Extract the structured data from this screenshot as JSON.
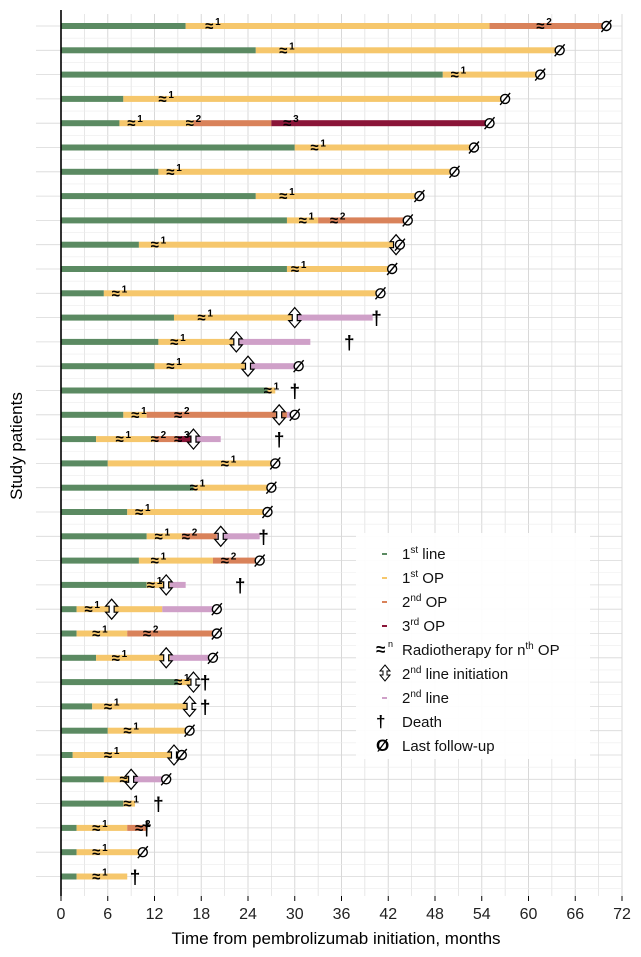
{
  "chart_data": {
    "type": "bar",
    "orientation": "horizontal",
    "stacked": true,
    "xlabel": "Time from pembrolizumab initiation, months",
    "ylabel": "Study patients",
    "xlim": [
      0,
      72
    ],
    "xticks": [
      "0",
      "6",
      "12",
      "18",
      "24",
      "30",
      "36",
      "42",
      "48",
      "54",
      "60",
      "66",
      "72"
    ],
    "grid": true,
    "legend_position": "right, lower middle",
    "colors": {
      "first_line": "#5b8a62",
      "first_op": "#f6c76c",
      "second_op": "#d9825a",
      "third_op": "#8a1538",
      "second_line": "#cfa0c8",
      "axis": "#000000",
      "grid": "#d8d8d8"
    },
    "legend": [
      {
        "key": "first_line",
        "label": "1",
        "sup": "st",
        "suffix": " line"
      },
      {
        "key": "first_op",
        "label": "1",
        "sup": "st",
        "suffix": " OP"
      },
      {
        "key": "second_op",
        "label": "2",
        "sup": "nd",
        "suffix": " OP"
      },
      {
        "key": "third_op",
        "label": "3",
        "sup": "rd",
        "suffix": " OP"
      },
      {
        "key": "radiotherapy",
        "label": "Radiotherapy for n",
        "sup": "th",
        "suffix": " OP",
        "icon": "≈",
        "icon_sup": "n"
      },
      {
        "key": "second_line_initiation",
        "label": "2",
        "sup": "nd",
        "suffix": " line initiation",
        "icon": "⇳"
      },
      {
        "key": "second_line",
        "label": "2",
        "sup": "nd",
        "suffix": " line"
      },
      {
        "key": "death",
        "label": "Death",
        "icon": "†"
      },
      {
        "key": "last_follow_up",
        "label": "Last follow-up",
        "icon": "Ø"
      }
    ],
    "series_order": [
      "first_line",
      "first_op",
      "second_op",
      "third_op",
      "second_line"
    ],
    "patients": [
      {
        "segments": [
          [
            0,
            16,
            "first_line"
          ],
          [
            16,
            55,
            "first_op"
          ],
          [
            55,
            70,
            "second_op"
          ]
        ],
        "rt": [
          [
            18.5,
            1
          ],
          [
            61,
            2
          ]
        ],
        "end": "last_follow_up",
        "end_x": 70
      },
      {
        "segments": [
          [
            0,
            25,
            "first_line"
          ],
          [
            25,
            64,
            "first_op"
          ]
        ],
        "rt": [
          [
            28,
            1
          ]
        ],
        "end": "last_follow_up",
        "end_x": 64
      },
      {
        "segments": [
          [
            0,
            49,
            "first_line"
          ],
          [
            49,
            61.5,
            "first_op"
          ]
        ],
        "rt": [
          [
            50,
            1
          ]
        ],
        "end": "last_follow_up",
        "end_x": 61.5
      },
      {
        "segments": [
          [
            0,
            8,
            "first_line"
          ],
          [
            8,
            57,
            "first_op"
          ]
        ],
        "rt": [
          [
            12.5,
            1
          ]
        ],
        "end": "last_follow_up",
        "end_x": 57
      },
      {
        "segments": [
          [
            0,
            7.5,
            "first_line"
          ],
          [
            7.5,
            17,
            "first_op"
          ],
          [
            17,
            27,
            "second_op"
          ],
          [
            27,
            55,
            "third_op"
          ]
        ],
        "rt": [
          [
            8.5,
            1
          ],
          [
            16,
            2
          ],
          [
            28.5,
            3
          ]
        ],
        "end": "last_follow_up",
        "end_x": 55
      },
      {
        "segments": [
          [
            0,
            30,
            "first_line"
          ],
          [
            30,
            53,
            "first_op"
          ]
        ],
        "rt": [
          [
            32,
            1
          ]
        ],
        "end": "last_follow_up",
        "end_x": 53
      },
      {
        "segments": [
          [
            0,
            12.5,
            "first_line"
          ],
          [
            12.5,
            50.5,
            "first_op"
          ]
        ],
        "rt": [
          [
            13.5,
            1
          ]
        ],
        "end": "last_follow_up",
        "end_x": 50.5
      },
      {
        "segments": [
          [
            0,
            25,
            "first_line"
          ],
          [
            25,
            46,
            "first_op"
          ]
        ],
        "rt": [
          [
            28,
            1
          ]
        ],
        "end": "last_follow_up",
        "end_x": 46
      },
      {
        "segments": [
          [
            0,
            29,
            "first_line"
          ],
          [
            29,
            33,
            "first_op"
          ],
          [
            33,
            44.5,
            "second_op"
          ]
        ],
        "rt": [
          [
            30.5,
            1
          ],
          [
            34.5,
            2
          ]
        ],
        "end": "last_follow_up",
        "end_x": 44.5
      },
      {
        "segments": [
          [
            0,
            10,
            "first_line"
          ],
          [
            10,
            43.5,
            "first_op"
          ]
        ],
        "rt": [
          [
            11.5,
            1
          ]
        ],
        "initiation_x": 43,
        "end": "last_follow_up",
        "end_x": 43.5
      },
      {
        "segments": [
          [
            0,
            29,
            "first_line"
          ],
          [
            29,
            42.5,
            "first_op"
          ]
        ],
        "rt": [
          [
            29.5,
            1
          ]
        ],
        "end": "last_follow_up",
        "end_x": 42.5
      },
      {
        "segments": [
          [
            0,
            5.5,
            "first_line"
          ],
          [
            5.5,
            41,
            "first_op"
          ]
        ],
        "rt": [
          [
            6.5,
            1
          ]
        ],
        "end": "last_follow_up",
        "end_x": 41
      },
      {
        "segments": [
          [
            0,
            14.5,
            "first_line"
          ],
          [
            14.5,
            30,
            "first_op"
          ],
          [
            30,
            40,
            "second_line"
          ]
        ],
        "rt": [
          [
            17.5,
            1
          ]
        ],
        "initiation_x": 30,
        "end": "death",
        "end_x": 40.5
      },
      {
        "segments": [
          [
            0,
            12.5,
            "first_line"
          ],
          [
            12.5,
            22.5,
            "first_op"
          ],
          [
            22.5,
            32,
            "second_line"
          ]
        ],
        "rt": [
          [
            14,
            1
          ]
        ],
        "initiation_x": 22.5,
        "end": "death",
        "end_x": 37
      },
      {
        "segments": [
          [
            0,
            12,
            "first_line"
          ],
          [
            12,
            24,
            "first_op"
          ],
          [
            24,
            30.5,
            "second_line"
          ]
        ],
        "rt": [
          [
            13.5,
            1
          ]
        ],
        "initiation_x": 24,
        "end": "last_follow_up",
        "end_x": 30.5
      },
      {
        "segments": [
          [
            0,
            26.5,
            "first_line"
          ],
          [
            26.5,
            27.5,
            "first_op"
          ]
        ],
        "rt": [
          [
            26,
            1
          ]
        ],
        "end": "death",
        "end_x": 30
      },
      {
        "segments": [
          [
            0,
            8,
            "first_line"
          ],
          [
            8,
            11,
            "first_op"
          ],
          [
            11,
            29,
            "second_op"
          ],
          [
            29,
            30,
            "second_line"
          ]
        ],
        "rt": [
          [
            9,
            1
          ],
          [
            14.5,
            2
          ]
        ],
        "initiation_x": 28,
        "end": "last_follow_up",
        "end_x": 30
      },
      {
        "segments": [
          [
            0,
            4.5,
            "first_line"
          ],
          [
            4.5,
            12,
            "first_op"
          ],
          [
            12,
            15,
            "second_op"
          ],
          [
            15,
            17,
            "third_op"
          ],
          [
            17,
            20.5,
            "second_line"
          ]
        ],
        "rt": [
          [
            7,
            1
          ],
          [
            11.5,
            2
          ],
          [
            14.5,
            3
          ]
        ],
        "initiation_x": 17,
        "end": "death",
        "end_x": 28
      },
      {
        "segments": [
          [
            0,
            6,
            "first_line"
          ],
          [
            6,
            27.5,
            "first_op"
          ]
        ],
        "rt": [
          [
            20.5,
            1
          ]
        ],
        "end": "last_follow_up",
        "end_x": 27.5
      },
      {
        "segments": [
          [
            0,
            17,
            "first_line"
          ],
          [
            17,
            27,
            "first_op"
          ]
        ],
        "rt": [
          [
            16.5,
            1
          ]
        ],
        "end": "last_follow_up",
        "end_x": 27
      },
      {
        "segments": [
          [
            0,
            8.5,
            "first_line"
          ],
          [
            8.5,
            26.5,
            "first_op"
          ]
        ],
        "rt": [
          [
            9.5,
            1
          ]
        ],
        "end": "last_follow_up",
        "end_x": 26.5
      },
      {
        "segments": [
          [
            0,
            11,
            "first_line"
          ],
          [
            11,
            15.5,
            "first_op"
          ],
          [
            15.5,
            20,
            "second_op"
          ],
          [
            20,
            25.5,
            "second_line"
          ]
        ],
        "rt": [
          [
            12,
            1
          ],
          [
            15.5,
            2
          ]
        ],
        "initiation_x": 20.5,
        "end": "death",
        "end_x": 26
      },
      {
        "segments": [
          [
            0,
            10,
            "first_line"
          ],
          [
            10,
            19.5,
            "first_op"
          ],
          [
            19.5,
            25.5,
            "second_op"
          ]
        ],
        "rt": [
          [
            11.5,
            1
          ],
          [
            20.5,
            2
          ]
        ],
        "end": "last_follow_up",
        "end_x": 25.5
      },
      {
        "segments": [
          [
            0,
            11,
            "first_line"
          ],
          [
            11,
            14,
            "first_op"
          ],
          [
            14,
            16,
            "second_line"
          ]
        ],
        "rt": [
          [
            11,
            1
          ]
        ],
        "initiation_x": 13.5,
        "end": "death",
        "end_x": 23
      },
      {
        "segments": [
          [
            0,
            2,
            "first_line"
          ],
          [
            2,
            13,
            "first_op"
          ],
          [
            13,
            20,
            "second_line"
          ]
        ],
        "rt": [
          [
            3,
            1
          ]
        ],
        "initiation_x": 6.5,
        "end": "last_follow_up",
        "end_x": 20
      },
      {
        "segments": [
          [
            0,
            2,
            "first_line"
          ],
          [
            2,
            8.5,
            "first_op"
          ],
          [
            8.5,
            20,
            "second_op"
          ]
        ],
        "rt": [
          [
            4,
            1
          ],
          [
            10.5,
            2
          ]
        ],
        "end": "last_follow_up",
        "end_x": 20
      },
      {
        "segments": [
          [
            0,
            4.5,
            "first_line"
          ],
          [
            4.5,
            14,
            "first_op"
          ],
          [
            14,
            19.5,
            "second_line"
          ]
        ],
        "rt": [
          [
            6.5,
            1
          ]
        ],
        "initiation_x": 13.5,
        "end": "last_follow_up",
        "end_x": 19.5
      },
      {
        "segments": [
          [
            0,
            15,
            "first_line"
          ],
          [
            15,
            17,
            "first_op"
          ]
        ],
        "rt": [
          [
            14.5,
            1
          ]
        ],
        "initiation_x": 17,
        "end": "death",
        "end_x": 18.5
      },
      {
        "segments": [
          [
            0,
            4,
            "first_line"
          ],
          [
            4,
            16.5,
            "first_op"
          ]
        ],
        "rt": [
          [
            5.5,
            1
          ]
        ],
        "initiation_x": 16.5,
        "end": "death",
        "end_x": 18.5
      },
      {
        "segments": [
          [
            0,
            6,
            "first_line"
          ],
          [
            6,
            16.5,
            "first_op"
          ]
        ],
        "rt": [
          [
            8,
            1
          ]
        ],
        "end": "last_follow_up",
        "end_x": 16.5
      },
      {
        "segments": [
          [
            0,
            1.5,
            "first_line"
          ],
          [
            1.5,
            14.5,
            "first_op"
          ]
        ],
        "rt": [
          [
            5.5,
            1
          ]
        ],
        "initiation_x": 14.5,
        "end": "last_follow_up",
        "end_x": 15.5
      },
      {
        "segments": [
          [
            0,
            5.5,
            "first_line"
          ],
          [
            5.5,
            9,
            "first_op"
          ],
          [
            9,
            13,
            "second_line"
          ]
        ],
        "rt": [
          [
            7.5,
            1
          ]
        ],
        "initiation_x": 9,
        "end": "last_follow_up",
        "end_x": 13.5
      },
      {
        "segments": [
          [
            0,
            8,
            "first_line"
          ],
          [
            8,
            9.5,
            "first_op"
          ]
        ],
        "rt": [
          [
            8,
            1
          ]
        ],
        "end": "death",
        "end_x": 12.5
      },
      {
        "segments": [
          [
            0,
            2,
            "first_line"
          ],
          [
            2,
            8.5,
            "first_op"
          ],
          [
            8.5,
            11,
            "second_op"
          ]
        ],
        "rt": [
          [
            4,
            1
          ],
          [
            9.5,
            2
          ]
        ],
        "end": "death",
        "end_x": 11
      },
      {
        "segments": [
          [
            0,
            2,
            "first_line"
          ],
          [
            2,
            10.5,
            "first_op"
          ]
        ],
        "rt": [
          [
            4,
            1
          ]
        ],
        "end": "last_follow_up",
        "end_x": 10.5
      },
      {
        "segments": [
          [
            0,
            2,
            "first_line"
          ],
          [
            2,
            8.5,
            "first_op"
          ]
        ],
        "rt": [
          [
            4,
            1
          ]
        ],
        "end": "death",
        "end_x": 9.5
      }
    ]
  }
}
